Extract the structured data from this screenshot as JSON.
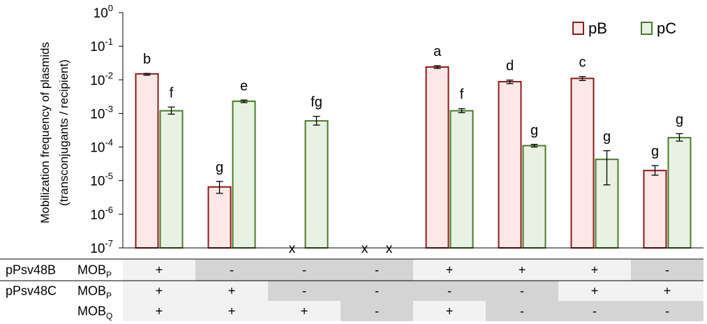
{
  "chart_data": {
    "type": "bar",
    "ylabel_line1": "Mobilization frequency of plasmids",
    "ylabel_line2": "(transconjugants / recipient)",
    "yscale": "log",
    "ylim": [
      1e-07,
      1
    ],
    "yticks": [
      {
        "exp": "0",
        "value": 1
      },
      {
        "exp": "-1",
        "value": 0.1
      },
      {
        "exp": "-2",
        "value": 0.01
      },
      {
        "exp": "-3",
        "value": 0.001
      },
      {
        "exp": "-4",
        "value": 0.0001
      },
      {
        "exp": "-5",
        "value": 1e-05
      },
      {
        "exp": "-6",
        "value": 1e-06
      },
      {
        "exp": "-7",
        "value": 1e-07
      }
    ],
    "tick_base": "10",
    "legend_position": "top-right",
    "series": [
      {
        "name": "pB",
        "color": "#8B1A1A",
        "fill": "#FDE8E8",
        "values": [
          0.015,
          6.5e-06,
          null,
          null,
          0.024,
          0.0088,
          0.011,
          2e-05
        ],
        "err_low": [
          0.0137,
          4.2e-06,
          null,
          null,
          0.0218,
          0.0077,
          0.0095,
          1.45e-05
        ],
        "err_high": [
          0.0155,
          9.5e-06,
          null,
          null,
          0.0263,
          0.0098,
          0.0125,
          2.8e-05
        ],
        "labels": [
          "b",
          "g",
          "",
          "",
          "a",
          "d",
          "c",
          "g"
        ]
      },
      {
        "name": "pC",
        "color": "#4A7A2C",
        "fill": "#E8F2E3",
        "values": [
          0.0012,
          0.0023,
          0.0006,
          null,
          0.0012,
          0.00011,
          4.3e-05,
          0.00019
        ],
        "err_low": [
          0.00095,
          0.0021,
          0.00045,
          null,
          0.00105,
          0.0001,
          7.5e-06,
          0.00015
        ],
        "err_high": [
          0.00155,
          0.0025,
          0.00082,
          null,
          0.00138,
          0.00012,
          7.8e-05,
          0.00025
        ],
        "labels": [
          "f",
          "e",
          "fg",
          "",
          "f",
          "g",
          "g",
          "g"
        ]
      }
    ],
    "not_detected_marker": "x",
    "not_detected": [
      {
        "group": 2,
        "series": 0
      },
      {
        "group": 3,
        "series": 0
      },
      {
        "group": 3,
        "series": 1
      }
    ]
  },
  "table": {
    "rows": [
      {
        "label": "pPsv48B",
        "mob_base": "MOB",
        "mob_sub": "P",
        "values": [
          "+",
          "-",
          "-",
          "-",
          "+",
          "+",
          "+",
          "-"
        ]
      },
      {
        "label": "pPsv48C",
        "mob_base": "MOB",
        "mob_sub": "P",
        "values": [
          "+",
          "+",
          "-",
          "-",
          "-",
          "-",
          "+",
          "+"
        ]
      },
      {
        "label": "",
        "mob_base": "MOB",
        "mob_sub": "Q",
        "values": [
          "+",
          "+",
          "+",
          "-",
          "+",
          "-",
          "-",
          "-"
        ]
      }
    ],
    "colors": {
      "plus": "#F2F2F2",
      "minus": "#D4D4D4"
    }
  }
}
